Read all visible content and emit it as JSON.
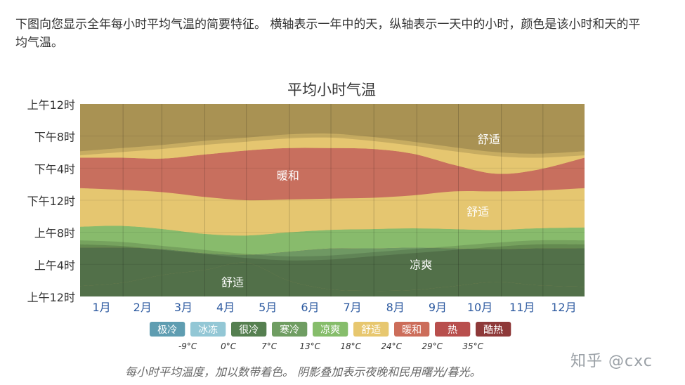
{
  "intro_text": "下图向您显示全年每小时平均气温的简要特征。 横轴表示一年中的天，纵轴表示一天中的小时，颜色是该小时和天的平均气温。",
  "caption": "每小时平均温度，加以数带着色。 阴影叠加表示夜晚和民用曙光/暮光。",
  "watermark": "知乎 @cxc",
  "chart_data": {
    "type": "heatmap",
    "title": "平均小时气温",
    "x_tick_labels": [
      "1月",
      "2月",
      "3月",
      "4月",
      "5月",
      "6月",
      "7月",
      "8月",
      "9月",
      "10月",
      "11月",
      "12月"
    ],
    "y_tick_labels": [
      "上午12时",
      "上午4时",
      "上午8时",
      "下午12时",
      "下午4时",
      "下午8时",
      "上午12时"
    ],
    "y_range_hours": [
      0,
      24
    ],
    "x_range_days": [
      1,
      365
    ],
    "grid": true,
    "band_sample_days": [
      1,
      31,
      61,
      91,
      121,
      151,
      181,
      211,
      241,
      271,
      301,
      331,
      365
    ],
    "bands": [
      {
        "label": "很冷",
        "color": "#6f9863",
        "lower_hour": [
          0.0,
          0.0,
          0.0,
          0.0,
          0.0,
          0.0,
          0.0,
          0.0,
          0.0,
          0.0,
          0.0,
          0.0,
          0.0
        ],
        "upper_hour": [
          1.3,
          1.7,
          2.7,
          3.3,
          4.2,
          2.0,
          0.9,
          0.7,
          0.8,
          1.3,
          1.8,
          1.4,
          1.2
        ]
      },
      {
        "label": "寒冷",
        "color": "#6f9863",
        "lower_hour": [
          1.3,
          1.7,
          2.7,
          3.3,
          4.2,
          2.0,
          0.9,
          0.7,
          0.8,
          1.3,
          1.8,
          1.4,
          1.2
        ],
        "upper_hour": [
          6.1,
          6.1,
          5.9,
          5.4,
          5.2,
          5.6,
          6.0,
          6.0,
          6.1,
          6.0,
          5.9,
          6.0,
          6.0
        ]
      },
      {
        "label": "凉爽",
        "color": "#88bb6c",
        "lower_hour": [
          6.1,
          6.1,
          5.9,
          5.4,
          5.2,
          5.6,
          6.0,
          6.0,
          6.1,
          6.0,
          5.9,
          6.0,
          6.0
        ],
        "upper_hour": [
          8.7,
          8.8,
          8.4,
          7.8,
          7.6,
          8.0,
          8.3,
          8.4,
          8.5,
          8.4,
          8.3,
          8.5,
          8.6
        ]
      },
      {
        "label": "舒适",
        "color": "#e5c670",
        "lower_hour": [
          8.7,
          8.8,
          8.4,
          7.8,
          7.6,
          8.0,
          8.3,
          8.4,
          8.5,
          8.4,
          8.3,
          8.5,
          8.6
        ],
        "upper_hour": [
          13.5,
          13.3,
          13.0,
          12.4,
          12.0,
          12.1,
          12.2,
          12.3,
          12.6,
          13.1,
          13.1,
          13.2,
          13.5
        ]
      },
      {
        "label": "暖和",
        "color": "#c86f5e",
        "lower_hour": [
          13.5,
          13.3,
          13.0,
          12.4,
          12.0,
          12.1,
          12.2,
          12.3,
          12.6,
          13.1,
          13.1,
          13.2,
          13.5
        ],
        "upper_hour": [
          17.3,
          17.3,
          17.2,
          17.7,
          18.2,
          18.5,
          18.5,
          18.4,
          17.8,
          16.4,
          15.3,
          15.8,
          17.3
        ]
      },
      {
        "label": "舒适",
        "color": "#e5c670",
        "lower_hour": [
          17.3,
          17.3,
          17.2,
          17.7,
          18.2,
          18.5,
          18.5,
          18.4,
          17.8,
          16.4,
          15.3,
          15.8,
          17.3
        ],
        "upper_hour": [
          24,
          24,
          24,
          24,
          24,
          24,
          24,
          24,
          24,
          24,
          24,
          24,
          24
        ]
      }
    ],
    "night_shading": {
      "color": "#000000",
      "sunrise_hour": [
        7.0,
        6.8,
        6.3,
        5.8,
        5.3,
        5.0,
        5.1,
        5.5,
        5.9,
        6.3,
        6.7,
        7.0,
        7.0
      ],
      "sunset_hour": [
        17.6,
        18.0,
        18.4,
        18.9,
        19.3,
        19.7,
        19.8,
        19.4,
        18.8,
        18.1,
        17.5,
        17.3,
        17.6
      ],
      "twilight_hours": 0.5
    },
    "band_labels": [
      {
        "text": "暖和",
        "day": 151,
        "hour": 15.1
      },
      {
        "text": "舒适",
        "day": 296,
        "hour": 19.6
      },
      {
        "text": "舒适",
        "day": 288,
        "hour": 10.6
      },
      {
        "text": "凉爽",
        "day": 247,
        "hour": 4.0
      },
      {
        "text": "舒适",
        "day": 111,
        "hour": 1.8
      }
    ],
    "legend": [
      {
        "label": "极冷",
        "color": "#5f9db1"
      },
      {
        "label": "冰冻",
        "color": "#93c7d5"
      },
      {
        "label": "很冷",
        "color": "#557f50"
      },
      {
        "label": "寒冷",
        "color": "#6f9d62"
      },
      {
        "label": "凉爽",
        "color": "#86bd6b"
      },
      {
        "label": "舒适",
        "color": "#e7c76f"
      },
      {
        "label": "暖和",
        "color": "#cc6d5a"
      },
      {
        "label": "热",
        "color": "#b84f4d"
      },
      {
        "label": "酷热",
        "color": "#8e3939"
      }
    ],
    "thresholds": [
      "-9°C",
      "0°C",
      "7°C",
      "13°C",
      "18°C",
      "24°C",
      "29°C",
      "35°C"
    ]
  }
}
